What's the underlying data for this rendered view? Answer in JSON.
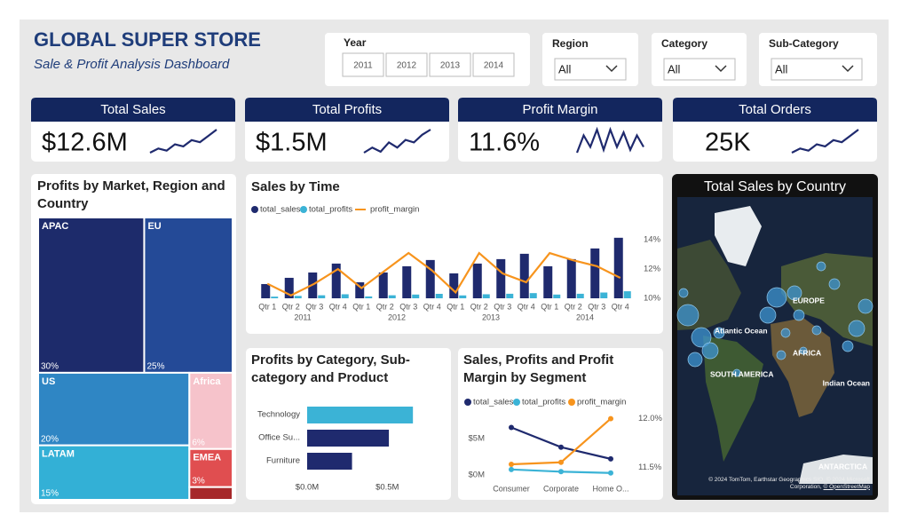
{
  "header": {
    "title": "GLOBAL SUPER STORE",
    "subtitle": "Sale & Profit Analysis Dashboard"
  },
  "filters": {
    "year": {
      "label": "Year",
      "options": [
        "2011",
        "2012",
        "2013",
        "2014"
      ]
    },
    "dropdowns": [
      {
        "label": "Region",
        "value": "All"
      },
      {
        "label": "Category",
        "value": "All"
      },
      {
        "label": "Sub-Category",
        "value": "All"
      }
    ]
  },
  "kpis": [
    {
      "title": "Total Sales",
      "value": "$12.6M",
      "trend": [
        3,
        4,
        3.5,
        5,
        4.5,
        6,
        5.5,
        7,
        8.5
      ]
    },
    {
      "title": "Total Profits",
      "value": "$1.5M",
      "trend": [
        3,
        4,
        3.2,
        5,
        4,
        5.5,
        5,
        6.5,
        7.5
      ]
    },
    {
      "title": "Profit Margin",
      "value": "11.6%",
      "trend": [
        2,
        5,
        3,
        6,
        2.5,
        6,
        3,
        5.5,
        2.5,
        5,
        3
      ]
    },
    {
      "title": "Total Orders",
      "value": "25K",
      "trend": [
        2,
        3,
        2.5,
        4,
        3.5,
        5,
        4.5,
        6,
        7.5
      ]
    }
  ],
  "map": {
    "title": "Total Sales by Country",
    "labels": [
      "EUROPE",
      "Atlantic Ocean",
      "AFRICA",
      "SOUTH AMERICA",
      "Indian Ocean",
      "ANTARCTICA"
    ],
    "attribution": [
      "© 2024 TomTom, Earthstar Geographics SIO, © 2024 Microsoft Corporation,",
      "© OpenStreetMap"
    ]
  },
  "chart_data": [
    {
      "type": "treemap",
      "title": "Profits by Market, Region and Country",
      "categories": [
        "APAC",
        "EU",
        "US",
        "LATAM",
        "Africa",
        "EMEA",
        null
      ],
      "values": [
        30,
        25,
        20,
        15,
        6,
        3,
        1
      ],
      "value_labels": [
        "30%",
        "25%",
        "20%",
        "15%",
        "6%",
        "3%",
        null
      ],
      "colors": [
        "#1d2b6b",
        "#244a97",
        "#2f86c4",
        "#33b0d6",
        "#f6c3cb",
        "#e04e50",
        "#a6282a"
      ]
    },
    {
      "type": "combo",
      "title": "Sales by Time",
      "categories": [
        "Qtr 1",
        "Qtr 2",
        "Qtr 3",
        "Qtr 4",
        "Qtr 1",
        "Qtr 2",
        "Qtr 3",
        "Qtr 4",
        "Qtr 1",
        "Qtr 2",
        "Qtr 3",
        "Qtr 4",
        "Qtr 1",
        "Qtr 2",
        "Qtr 3",
        "Qtr 4"
      ],
      "groups": [
        "2011",
        "2012",
        "2013",
        "2014"
      ],
      "series": [
        {
          "name": "total_sales",
          "color": "#1f2a6e",
          "values": [
            336,
            483,
            609,
            819,
            378,
            609,
            756,
            903,
            588,
            819,
            924,
            1050,
            756,
            924,
            1176,
            1428
          ]
        },
        {
          "name": "total_profits",
          "color": "#3bb3d6",
          "values": [
            39,
            56,
            71,
            95,
            44,
            71,
            88,
            105,
            68,
            95,
            107,
            122,
            88,
            107,
            136,
            166
          ]
        },
        {
          "name": "profit_margin",
          "color": "#f7941d",
          "axis": "y2",
          "values": [
            11.0,
            10.2,
            11.0,
            12.0,
            10.7,
            11.9,
            13.1,
            11.9,
            10.4,
            13.1,
            11.7,
            11.1,
            13.1,
            12.6,
            12.2,
            11.4
          ]
        }
      ],
      "ylim": [
        0,
        1550
      ],
      "y2lim": [
        10,
        14.5
      ],
      "y2ticks": [
        {
          "value": 10,
          "label": "10%"
        },
        {
          "value": 12,
          "label": "12%"
        },
        {
          "value": 14,
          "label": "14%"
        }
      ]
    },
    {
      "type": "hbar",
      "title": "Profits by Category, Sub-category and Product",
      "categories": [
        "Technology",
        "Office Su...",
        "Furniture"
      ],
      "values": [
        0.66,
        0.51,
        0.28
      ],
      "colors": [
        "#3bb3d6",
        "#1f2a6e",
        "#1f2a6e"
      ],
      "xlim": [
        0,
        0.72
      ],
      "xticks": [
        {
          "value": 0,
          "label": "$0.0M"
        },
        {
          "value": 0.5,
          "label": "$0.5M"
        }
      ]
    },
    {
      "type": "line",
      "title": "Sales, Profits and Profit Margin by Segment",
      "categories": [
        "Consumer",
        "Corporate",
        "Home O..."
      ],
      "series": [
        {
          "name": "total_sales",
          "color": "#1f2a6e",
          "values": [
            6.5,
            3.8,
            2.2
          ]
        },
        {
          "name": "total_profits",
          "color": "#3bb3d6",
          "values": [
            0.75,
            0.45,
            0.27
          ]
        },
        {
          "name": "profit_margin",
          "color": "#f7941d",
          "axis": "y2",
          "values": [
            11.53,
            11.55,
            12.0
          ]
        }
      ],
      "ylim": [
        0,
        8.5
      ],
      "yticks": [
        {
          "value": 0,
          "label": "$0M"
        },
        {
          "value": 5,
          "label": "$5M"
        }
      ],
      "y2lim": [
        11.42,
        12.06
      ],
      "y2ticks": [
        {
          "value": 11.5,
          "label": "11.5%"
        },
        {
          "value": 12,
          "label": "12.0%"
        }
      ]
    }
  ]
}
